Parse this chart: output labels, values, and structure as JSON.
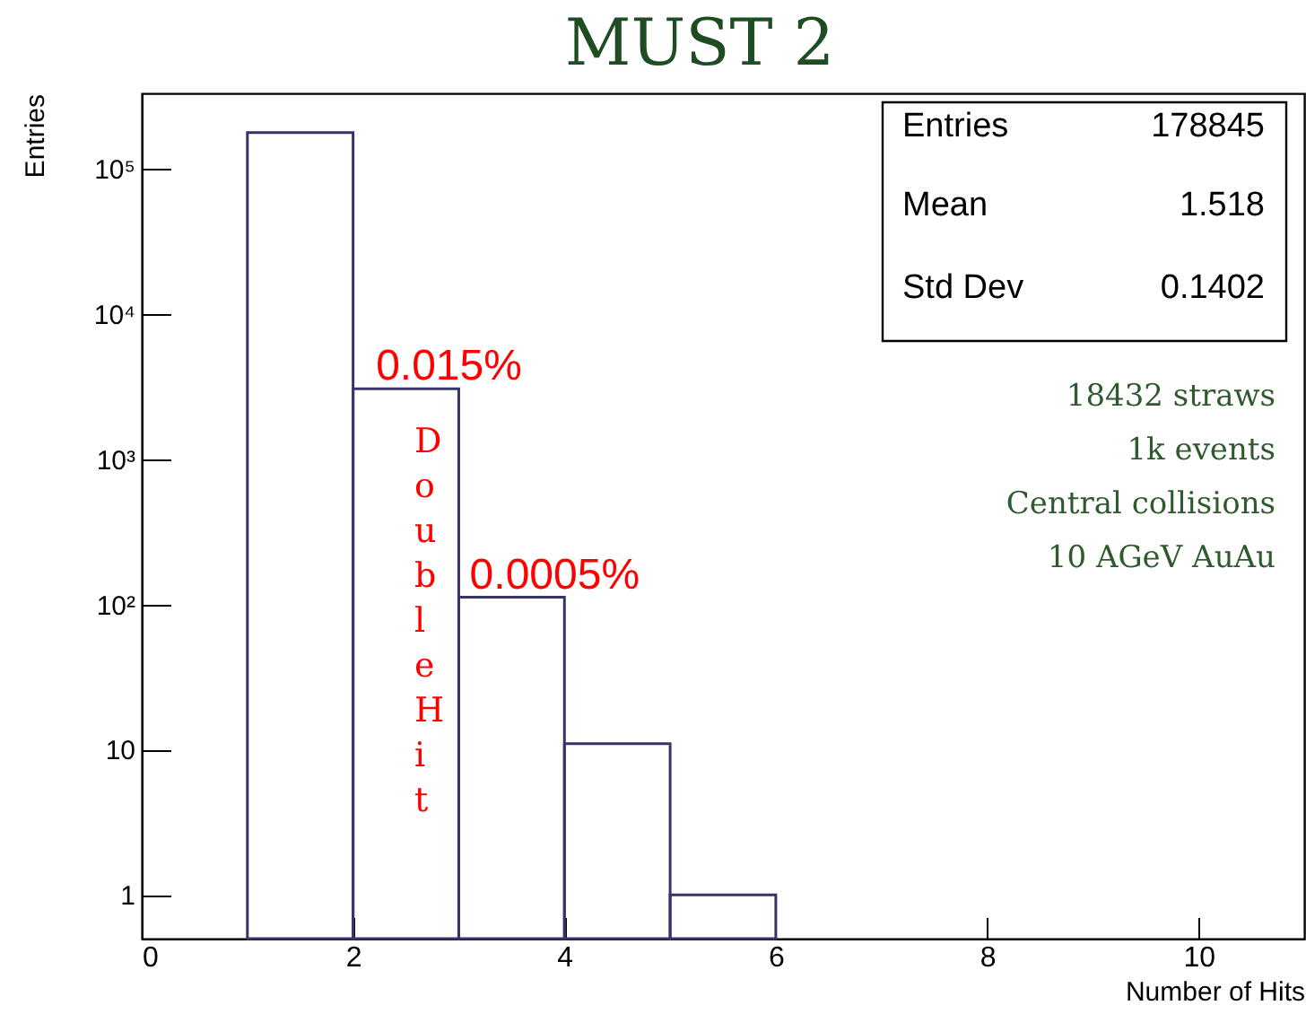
{
  "chart_data": {
    "type": "histogram",
    "title": "MUST 2",
    "xlabel": "Number of Hits",
    "ylabel": "Entries",
    "bins": [
      1,
      2,
      3,
      4,
      5,
      6
    ],
    "values": [
      177000,
      3050,
      112,
      11,
      1
    ],
    "color": "#35356b",
    "log": "y",
    "xlim": [
      0,
      11
    ],
    "xticks": [
      0,
      2,
      4,
      6,
      8,
      10
    ],
    "ylim": [
      0.5,
      330000
    ],
    "yticks": [
      1,
      10,
      {
        "value": 100,
        "label": "10²"
      },
      {
        "value": 1000,
        "label": "10³"
      },
      {
        "value": 10000,
        "label": "10⁴"
      },
      {
        "value": 100000,
        "label": "10⁵"
      }
    ],
    "grid": false,
    "annotations": [
      "Entries",
      "178845",
      "Mean",
      "1.518",
      "Std Dev",
      "0.1402",
      "18432 straws",
      "1k events",
      "Central collisions",
      "10 AGeV AuAu",
      {
        "text": "0.015%",
        "x": 2.5,
        "y": 3050
      },
      {
        "text": "0.0005%",
        "x": 3.5,
        "y": 112
      },
      "Double Hit"
    ]
  }
}
